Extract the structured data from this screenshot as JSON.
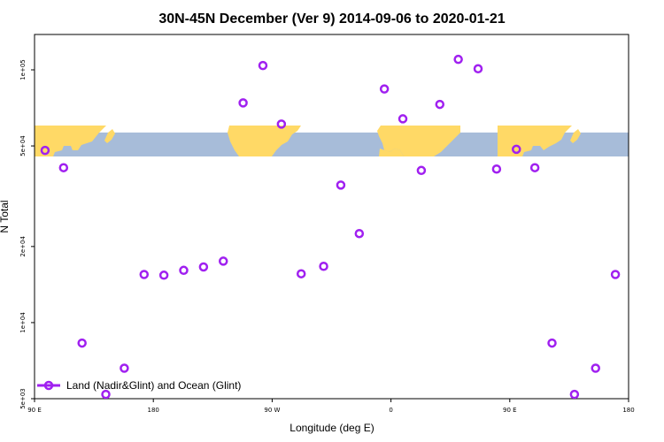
{
  "chart_data": {
    "type": "scatter",
    "title": "30N-45N December (Ver 9)   2014-09-06 to 2020-01-21",
    "xlabel": "Longitude (deg E)",
    "ylabel": "N Total",
    "y_scale": "log",
    "xlim": [
      90,
      540
    ],
    "ylim": [
      5000,
      138000
    ],
    "x_ticks": [
      {
        "value": 90,
        "label": "90 E"
      },
      {
        "value": 180,
        "label": "180"
      },
      {
        "value": 270,
        "label": "90 W"
      },
      {
        "value": 360,
        "label": "0"
      },
      {
        "value": 450,
        "label": "90 E"
      },
      {
        "value": 540,
        "label": "180"
      }
    ],
    "y_ticks": [
      {
        "value": 5000,
        "label": "5e+03"
      },
      {
        "value": 10000,
        "label": "1e+04"
      },
      {
        "value": 20000,
        "label": "2e+04"
      },
      {
        "value": 50000,
        "label": "5e+04"
      },
      {
        "value": 100000,
        "label": "1e+05"
      }
    ],
    "background_map": {
      "description": "world map strip, latitude band 30N-45N",
      "lon_range": [
        90,
        540
      ],
      "y_range": [
        42500,
        56500
      ],
      "land_color": "#FFD966",
      "ocean_color": "#A7BCD9"
    },
    "series": [
      {
        "name": "Land (Nadir&Glint) and Ocean (Glint)",
        "color": "#A020F0",
        "marker": "open-circle",
        "points": [
          {
            "x": 98,
            "y": 48000
          },
          {
            "x": 112,
            "y": 41000
          },
          {
            "x": 126,
            "y": 8300
          },
          {
            "x": 144,
            "y": 5200
          },
          {
            "x": 158,
            "y": 6600
          },
          {
            "x": 173,
            "y": 15500
          },
          {
            "x": 188,
            "y": 15400
          },
          {
            "x": 203,
            "y": 16100
          },
          {
            "x": 218,
            "y": 16600
          },
          {
            "x": 233,
            "y": 17500
          },
          {
            "x": 248,
            "y": 74000
          },
          {
            "x": 263,
            "y": 104000
          },
          {
            "x": 277,
            "y": 61000
          },
          {
            "x": 292,
            "y": 15600
          },
          {
            "x": 309,
            "y": 16700
          },
          {
            "x": 322,
            "y": 35000
          },
          {
            "x": 336,
            "y": 22500
          },
          {
            "x": 355,
            "y": 84000
          },
          {
            "x": 369,
            "y": 64000
          },
          {
            "x": 383,
            "y": 40000
          },
          {
            "x": 397,
            "y": 73000
          },
          {
            "x": 411,
            "y": 110000
          },
          {
            "x": 426,
            "y": 101000
          },
          {
            "x": 440,
            "y": 40500
          },
          {
            "x": 455,
            "y": 48500
          },
          {
            "x": 469,
            "y": 41000
          },
          {
            "x": 482,
            "y": 8300
          },
          {
            "x": 499,
            "y": 5200
          },
          {
            "x": 515,
            "y": 6600
          },
          {
            "x": 530,
            "y": 15500
          }
        ]
      }
    ],
    "legend": {
      "position": "bottom-left"
    }
  }
}
